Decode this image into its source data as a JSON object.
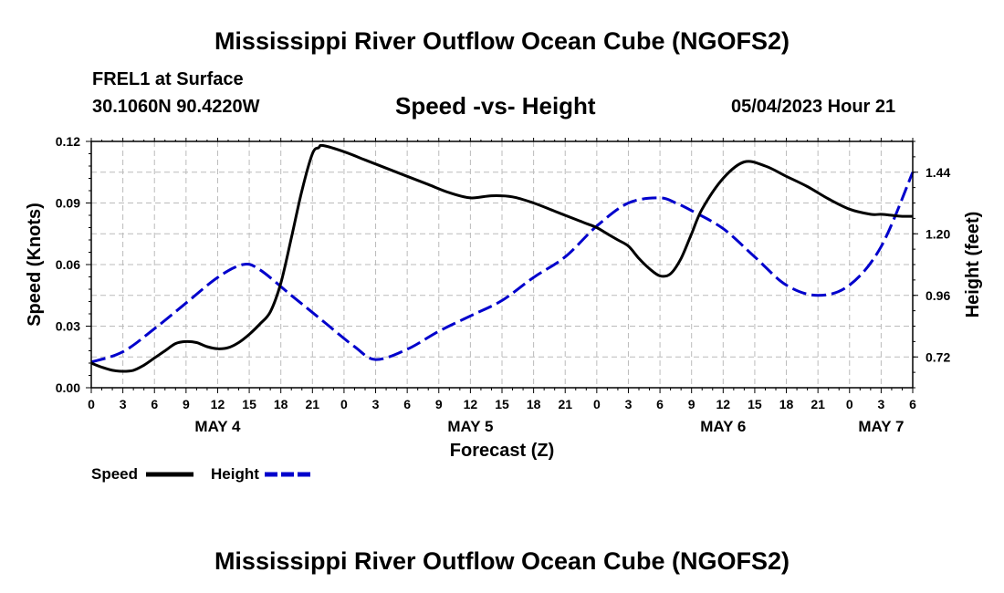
{
  "header": {
    "title": "Mississippi River Outflow Ocean Cube (NGOFS2)",
    "station": "FREL1 at Surface",
    "coords": "30.1060N  90.4220W",
    "subtitle": "Speed -vs- Height",
    "datetime": "05/04/2023 Hour 21",
    "footer_title": "Mississippi River Outflow Ocean Cube (NGOFS2)"
  },
  "chart_data": {
    "type": "line",
    "title": "Speed -vs- Height",
    "xlabel": "Forecast (Z)",
    "ylabel": "Speed (Knots)",
    "y2label": "Height (feet)",
    "x_unit": "hours from May 4 00Z",
    "xlim": [
      0,
      78
    ],
    "ylim": [
      0,
      0.12
    ],
    "y2lim": [
      0.6,
      1.56
    ],
    "x_ticks": [
      0,
      3,
      6,
      9,
      12,
      15,
      18,
      21,
      24,
      27,
      30,
      33,
      36,
      39,
      42,
      45,
      48,
      51,
      54,
      57,
      60,
      63,
      66,
      69,
      72,
      75,
      78
    ],
    "x_tick_labels": [
      "0",
      "3",
      "6",
      "9",
      "12",
      "15",
      "18",
      "21",
      "0",
      "3",
      "6",
      "9",
      "12",
      "15",
      "18",
      "21",
      "0",
      "3",
      "6",
      "9",
      "12",
      "15",
      "18",
      "21",
      "0",
      "3",
      "6"
    ],
    "y_ticks": [
      0,
      0.03,
      0.06,
      0.09,
      0.12
    ],
    "y_tick_labels": [
      "0.00",
      "0.03",
      "0.06",
      "0.09",
      "0.12"
    ],
    "y2_ticks": [
      0.72,
      0.96,
      1.2,
      1.44
    ],
    "y2_tick_labels": [
      "0.72",
      "0.96",
      "1.20",
      "1.44"
    ],
    "days": [
      {
        "label": "MAY 4",
        "x": 12
      },
      {
        "label": "MAY 5",
        "x": 36
      },
      {
        "label": "MAY 6",
        "x": 60
      },
      {
        "label": "MAY 7",
        "x": 75
      }
    ],
    "grid": true,
    "legend_position": "bottom-left",
    "series": [
      {
        "name": "Speed",
        "axis": "left",
        "color": "#000000",
        "style": "solid",
        "x": [
          0,
          1,
          2,
          3,
          4,
          5,
          6,
          7,
          8,
          9,
          10,
          11,
          12,
          13,
          14,
          15,
          16,
          17,
          18,
          19,
          20,
          21,
          21.6,
          22,
          24,
          26,
          28,
          30,
          32,
          34,
          36,
          38,
          40,
          42,
          44,
          46,
          47,
          48,
          49,
          50,
          51,
          52,
          53,
          54,
          55,
          56,
          57,
          58,
          60,
          62,
          64,
          66,
          68,
          70,
          72,
          74,
          75,
          76,
          77,
          78
        ],
        "values": [
          0.012,
          0.01,
          0.0085,
          0.008,
          0.0085,
          0.011,
          0.0145,
          0.018,
          0.0215,
          0.0225,
          0.022,
          0.02,
          0.019,
          0.0195,
          0.022,
          0.026,
          0.031,
          0.037,
          0.051,
          0.073,
          0.096,
          0.114,
          0.117,
          0.118,
          0.115,
          0.111,
          0.107,
          0.103,
          0.099,
          0.095,
          0.0925,
          0.0935,
          0.093,
          0.09,
          0.086,
          0.082,
          0.08,
          0.078,
          0.075,
          0.072,
          0.069,
          0.063,
          0.058,
          0.0545,
          0.0555,
          0.063,
          0.075,
          0.087,
          0.102,
          0.11,
          0.108,
          0.103,
          0.098,
          0.092,
          0.087,
          0.0845,
          0.0845,
          0.084,
          0.0835,
          0.0835
        ]
      },
      {
        "name": "Height",
        "axis": "right",
        "color": "#0000cc",
        "style": "dashed",
        "x": [
          0,
          3,
          6,
          9,
          12,
          14.4,
          16,
          19,
          22,
          25,
          27,
          30,
          33,
          36,
          39,
          42,
          45,
          48,
          51,
          54,
          55.5,
          57,
          60,
          63,
          66,
          69,
          72,
          75,
          78
        ],
        "values": [
          0.7,
          0.74,
          0.83,
          0.93,
          1.03,
          1.08,
          1.06,
          0.96,
          0.86,
          0.76,
          0.71,
          0.75,
          0.82,
          0.88,
          0.94,
          1.03,
          1.11,
          1.23,
          1.32,
          1.34,
          1.32,
          1.29,
          1.22,
          1.11,
          1.0,
          0.96,
          1.0,
          1.15,
          1.44
        ]
      }
    ]
  }
}
